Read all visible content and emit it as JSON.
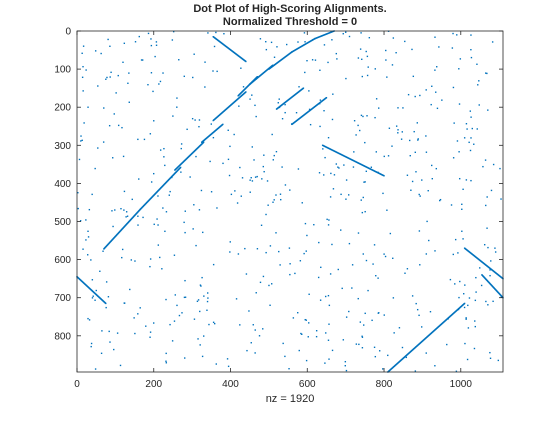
{
  "chart_data": {
    "type": "scatter",
    "title_lines": [
      "Dot Plot of High-Scoring Alignments.",
      "Normalized Threshold = 0"
    ],
    "xlabel": "nz = 1920",
    "ylabel": "",
    "xlim": [
      0,
      1110
    ],
    "ylim": [
      0,
      895
    ],
    "y_direction": "reversed",
    "x_ticks": [
      0,
      200,
      400,
      600,
      800,
      1000
    ],
    "y_ticks": [
      0,
      100,
      200,
      300,
      400,
      500,
      600,
      700,
      800
    ],
    "grid": false,
    "box": true,
    "marker_color": "#0072BD",
    "marker": "point",
    "nz": 1920,
    "diagonal_segments": [
      {
        "x": [
          70,
          165
        ],
        "y": [
          572,
          468
        ]
      },
      {
        "x": [
          165,
          270
        ],
        "y": [
          468,
          358
        ]
      },
      {
        "x": [
          255,
          330
        ],
        "y": [
          365,
          292
        ]
      },
      {
        "x": [
          325,
          380
        ],
        "y": [
          292,
          245
        ]
      },
      {
        "x": [
          355,
          440
        ],
        "y": [
          235,
          160
        ]
      },
      {
        "x": [
          420,
          470
        ],
        "y": [
          170,
          120
        ]
      },
      {
        "x": [
          450,
          510
        ],
        "y": [
          140,
          90
        ]
      },
      {
        "x": [
          500,
          560
        ],
        "y": [
          100,
          55
        ]
      },
      {
        "x": [
          560,
          620
        ],
        "y": [
          55,
          20
        ]
      },
      {
        "x": [
          620,
          670
        ],
        "y": [
          20,
          0
        ]
      },
      {
        "x": [
          355,
          440
        ],
        "y": [
          15,
          80
        ]
      },
      {
        "x": [
          640,
          800
        ],
        "y": [
          300,
          380
        ]
      },
      {
        "x": [
          0,
          75
        ],
        "y": [
          645,
          715
        ]
      },
      {
        "x": [
          1010,
          1110
        ],
        "y": [
          570,
          650
        ]
      },
      {
        "x": [
          1055,
          1110
        ],
        "y": [
          640,
          700
        ]
      },
      {
        "x": [
          810,
          1010
        ],
        "y": [
          895,
          715
        ]
      },
      {
        "x": [
          560,
          650
        ],
        "y": [
          245,
          175
        ]
      },
      {
        "x": [
          520,
          590
        ],
        "y": [
          205,
          150
        ]
      }
    ]
  }
}
